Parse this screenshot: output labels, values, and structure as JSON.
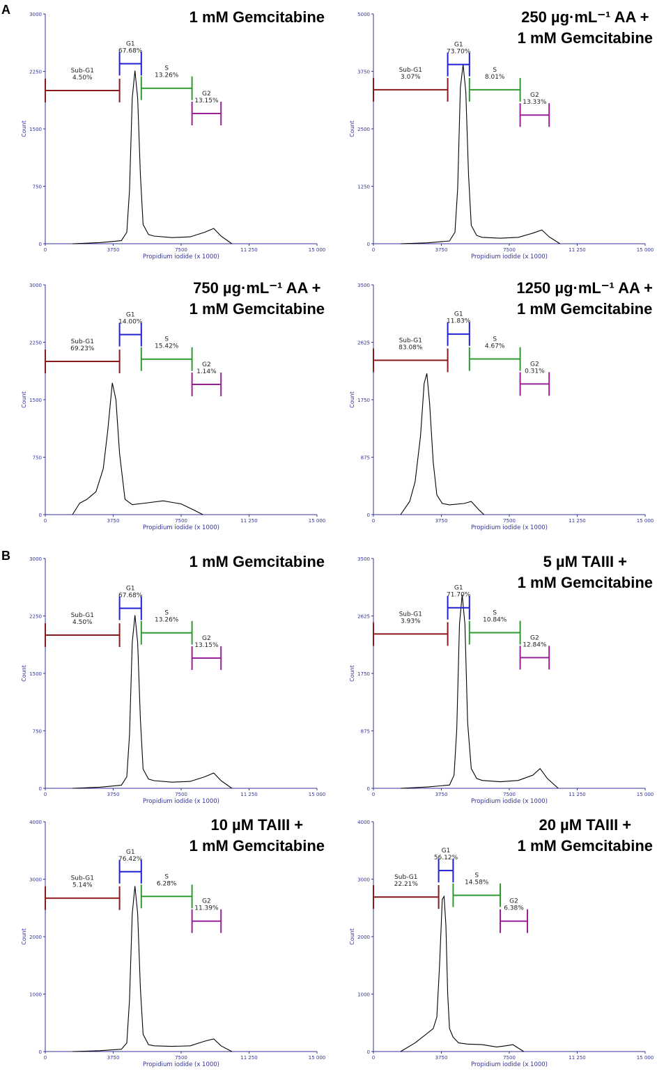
{
  "section_labels": {
    "a": "A",
    "b": "B"
  },
  "colors": {
    "axis": "#33339a",
    "curve": "#000000",
    "subg1": "#8b1a1a",
    "g1": "#1f1fd6",
    "s": "#2f9a2f",
    "g2": "#9a209a"
  },
  "chart_data": [
    {
      "type": "line",
      "section": "A",
      "title": [
        "1 mM Gemcitabine"
      ],
      "xlabel": "Propidium iodide (x 1000)",
      "ylabel": "Count",
      "xlim": [
        0,
        15000
      ],
      "x_ticks": [
        "0",
        "3750",
        "7500",
        "11 250",
        "15 000"
      ],
      "ylim": [
        0,
        3000
      ],
      "y_ticks": [
        "0",
        "750",
        "1500",
        "2250",
        "3000"
      ],
      "series": [
        {
          "x": [
            1500,
            3000,
            4200,
            4500,
            4650,
            4800,
            4950,
            5100,
            5250,
            5400,
            5700,
            6000,
            7000,
            8000,
            8800,
            9300,
            9700,
            10300
          ],
          "y": [
            0,
            15,
            40,
            150,
            700,
            1900,
            2260,
            1900,
            900,
            250,
            120,
            100,
            80,
            90,
            150,
            200,
            100,
            0
          ]
        }
      ],
      "gates": [
        {
          "name": "Sub-G1",
          "percent": "4.50%",
          "x1": 0,
          "x2": 4100,
          "y": 2000
        },
        {
          "name": "G1",
          "percent": "67.68%",
          "x1": 4100,
          "x2": 5300,
          "y": 2350
        },
        {
          "name": "S",
          "percent": "13.26%",
          "x1": 5300,
          "x2": 8100,
          "y": 2030
        },
        {
          "name": "G2",
          "percent": "13.15%",
          "x1": 8100,
          "x2": 9700,
          "y": 1700
        }
      ]
    },
    {
      "type": "line",
      "section": "A",
      "title": [
        "250 µg·mL⁻¹ AA +",
        "1 mM Gemcitabine"
      ],
      "xlabel": "Propidium iodide (x 1000)",
      "ylabel": "Count",
      "xlim": [
        0,
        15000
      ],
      "x_ticks": [
        "0",
        "3750",
        "7500",
        "11 250",
        "15 000"
      ],
      "ylim": [
        0,
        5000
      ],
      "y_ticks": [
        "0",
        "1250",
        "2500",
        "3750",
        "5000"
      ],
      "series": [
        {
          "x": [
            1500,
            3000,
            4200,
            4500,
            4650,
            4800,
            4950,
            5100,
            5250,
            5400,
            5700,
            6000,
            7000,
            8000,
            8800,
            9300,
            9700,
            10300
          ],
          "y": [
            0,
            20,
            60,
            250,
            1200,
            3400,
            3900,
            3300,
            1500,
            400,
            180,
            140,
            120,
            140,
            230,
            300,
            150,
            0
          ]
        }
      ],
      "gates": [
        {
          "name": "Sub-G1",
          "percent": "3.07%",
          "x1": 0,
          "x2": 4100,
          "y": 3350
        },
        {
          "name": "G1",
          "percent": "73.70%",
          "x1": 4100,
          "x2": 5300,
          "y": 3900
        },
        {
          "name": "S",
          "percent": "8.01%",
          "x1": 5300,
          "x2": 8100,
          "y": 3350
        },
        {
          "name": "G2",
          "percent": "13.33%",
          "x1": 8100,
          "x2": 9700,
          "y": 2800
        }
      ]
    },
    {
      "type": "line",
      "section": "A",
      "title": [
        "750 µg·mL⁻¹ AA +",
        "1 mM Gemcitabine"
      ],
      "xlabel": "Propidium iodide (x 1000)",
      "ylabel": "Count",
      "xlim": [
        0,
        15000
      ],
      "x_ticks": [
        "0",
        "3750",
        "7500",
        "11 250",
        "15 000"
      ],
      "ylim": [
        0,
        3000
      ],
      "y_ticks": [
        "0",
        "750",
        "1500",
        "2250",
        "3000"
      ],
      "series": [
        {
          "x": [
            1500,
            1900,
            2300,
            2800,
            3200,
            3450,
            3700,
            3900,
            4100,
            4400,
            4800,
            5500,
            6500,
            7500,
            8200,
            8700
          ],
          "y": [
            0,
            150,
            200,
            300,
            600,
            1100,
            1720,
            1500,
            800,
            200,
            130,
            150,
            180,
            140,
            60,
            0
          ]
        }
      ],
      "gates": [
        {
          "name": "Sub-G1",
          "percent": "69.23%",
          "x1": 0,
          "x2": 4100,
          "y": 2000
        },
        {
          "name": "G1",
          "percent": "14.00%",
          "x1": 4100,
          "x2": 5300,
          "y": 2350
        },
        {
          "name": "S",
          "percent": "15.42%",
          "x1": 5300,
          "x2": 8100,
          "y": 2030
        },
        {
          "name": "G2",
          "percent": "1.14%",
          "x1": 8100,
          "x2": 9700,
          "y": 1700
        }
      ]
    },
    {
      "type": "line",
      "section": "A",
      "title": [
        "1250 µg·mL⁻¹ AA +",
        "1 mM Gemcitabine"
      ],
      "xlabel": "Propidium iodide (x 1000)",
      "ylabel": "Count",
      "xlim": [
        0,
        15000
      ],
      "x_ticks": [
        "0",
        "3750",
        "7500",
        "11 250",
        "15 000"
      ],
      "ylim": [
        0,
        3500
      ],
      "y_ticks": [
        "0",
        "875",
        "1750",
        "2625",
        "3500"
      ],
      "series": [
        {
          "x": [
            1500,
            2000,
            2300,
            2600,
            2800,
            2950,
            3100,
            3300,
            3500,
            3800,
            4200,
            5000,
            5400,
            5800,
            6100
          ],
          "y": [
            0,
            200,
            500,
            1200,
            2000,
            2150,
            1700,
            800,
            300,
            170,
            150,
            170,
            200,
            80,
            0
          ]
        }
      ],
      "gates": [
        {
          "name": "Sub-G1",
          "percent": "83.08%",
          "x1": 0,
          "x2": 4100,
          "y": 2350
        },
        {
          "name": "G1",
          "percent": "11.83%",
          "x1": 4100,
          "x2": 5300,
          "y": 2750
        },
        {
          "name": "S",
          "percent": "4.67%",
          "x1": 5300,
          "x2": 8100,
          "y": 2370
        },
        {
          "name": "G2",
          "percent": "0.31%",
          "x1": 8100,
          "x2": 9700,
          "y": 1990
        }
      ]
    },
    {
      "type": "line",
      "section": "B",
      "title": [
        "1 mM Gemcitabine"
      ],
      "xlabel": "Propidium iodide (x 1000)",
      "ylabel": "Count",
      "xlim": [
        0,
        15000
      ],
      "x_ticks": [
        "0",
        "3750",
        "7500",
        "11 250",
        "15 000"
      ],
      "ylim": [
        0,
        3000
      ],
      "y_ticks": [
        "0",
        "750",
        "1500",
        "2250",
        "3000"
      ],
      "series": [
        {
          "x": [
            1500,
            3000,
            4200,
            4500,
            4650,
            4800,
            4950,
            5100,
            5250,
            5400,
            5700,
            6000,
            7000,
            8000,
            8800,
            9300,
            9700,
            10300
          ],
          "y": [
            0,
            15,
            40,
            150,
            700,
            1900,
            2260,
            1900,
            900,
            250,
            120,
            100,
            80,
            90,
            150,
            200,
            100,
            0
          ]
        }
      ],
      "gates": [
        {
          "name": "Sub-G1",
          "percent": "4.50%",
          "x1": 0,
          "x2": 4100,
          "y": 2000
        },
        {
          "name": "G1",
          "percent": "67.68%",
          "x1": 4100,
          "x2": 5300,
          "y": 2350
        },
        {
          "name": "S",
          "percent": "13.26%",
          "x1": 5300,
          "x2": 8100,
          "y": 2030
        },
        {
          "name": "G2",
          "percent": "13.15%",
          "x1": 8100,
          "x2": 9700,
          "y": 1700
        }
      ]
    },
    {
      "type": "line",
      "section": "B",
      "title": [
        "5 µM TAIII +",
        "1 mM Gemcitabine"
      ],
      "xlabel": "Propidium iodide (x 1000)",
      "ylabel": "Count",
      "xlim": [
        0,
        15000
      ],
      "x_ticks": [
        "0",
        "3750",
        "7500",
        "11 250",
        "15 000"
      ],
      "ylim": [
        0,
        3500
      ],
      "y_ticks": [
        "0",
        "875",
        "1750",
        "2625",
        "3500"
      ],
      "series": [
        {
          "x": [
            1500,
            3000,
            4200,
            4450,
            4600,
            4750,
            4900,
            5050,
            5200,
            5400,
            5700,
            6000,
            7000,
            8000,
            8800,
            9200,
            9600,
            10200
          ],
          "y": [
            0,
            20,
            50,
            200,
            900,
            2500,
            2950,
            2500,
            1000,
            300,
            150,
            120,
            100,
            120,
            200,
            300,
            150,
            0
          ]
        }
      ],
      "gates": [
        {
          "name": "Sub-G1",
          "percent": "3.93%",
          "x1": 0,
          "x2": 4100,
          "y": 2350
        },
        {
          "name": "G1",
          "percent": "71.70%",
          "x1": 4100,
          "x2": 5300,
          "y": 2750
        },
        {
          "name": "S",
          "percent": "10.84%",
          "x1": 5300,
          "x2": 8100,
          "y": 2370
        },
        {
          "name": "G2",
          "percent": "12.84%",
          "x1": 8100,
          "x2": 9700,
          "y": 1990
        }
      ]
    },
    {
      "type": "line",
      "section": "B",
      "title": [
        "10 µM TAIII +",
        "1 mM Gemcitabine"
      ],
      "xlabel": "Propidium iodide (x 1000)",
      "ylabel": "Count",
      "xlim": [
        0,
        15000
      ],
      "x_ticks": [
        "0",
        "3750",
        "7500",
        "11 250",
        "15 000"
      ],
      "ylim": [
        0,
        4000
      ],
      "y_ticks": [
        "0",
        "1000",
        "2000",
        "3000",
        "4000"
      ],
      "series": [
        {
          "x": [
            1500,
            3000,
            4200,
            4500,
            4650,
            4800,
            4950,
            5100,
            5250,
            5400,
            5700,
            6000,
            7000,
            8000,
            8800,
            9300,
            9700,
            10300
          ],
          "y": [
            0,
            15,
            40,
            150,
            900,
            2400,
            2880,
            2400,
            1100,
            300,
            120,
            100,
            90,
            100,
            180,
            220,
            100,
            0
          ]
        }
      ],
      "gates": [
        {
          "name": "Sub-G1",
          "percent": "5.14%",
          "x1": 0,
          "x2": 4100,
          "y": 2670
        },
        {
          "name": "G1",
          "percent": "76.42%",
          "x1": 4100,
          "x2": 5300,
          "y": 3130
        },
        {
          "name": "S",
          "percent": "6.28%",
          "x1": 5300,
          "x2": 8100,
          "y": 2700
        },
        {
          "name": "G2",
          "percent": "11.39%",
          "x1": 8100,
          "x2": 9700,
          "y": 2270
        }
      ]
    },
    {
      "type": "line",
      "section": "B",
      "title": [
        "20 µM TAIII +",
        "1 mM Gemcitabine"
      ],
      "xlabel": "Propidium iodide (x 1000)",
      "ylabel": "Count",
      "xlim": [
        0,
        15000
      ],
      "x_ticks": [
        "0",
        "3750",
        "7500",
        "11 250",
        "15 000"
      ],
      "ylim": [
        0,
        4000
      ],
      "y_ticks": [
        "0",
        "1000",
        "2000",
        "3000",
        "4000"
      ],
      "series": [
        {
          "x": [
            1500,
            2300,
            2900,
            3300,
            3500,
            3650,
            3800,
            3900,
            4000,
            4100,
            4200,
            4400,
            4700,
            5200,
            6000,
            6800,
            7300,
            7700,
            8000,
            8300
          ],
          "y": [
            0,
            150,
            300,
            400,
            600,
            1500,
            2650,
            2700,
            2200,
            1000,
            400,
            250,
            150,
            130,
            120,
            80,
            100,
            120,
            60,
            0
          ]
        }
      ],
      "gates": [
        {
          "name": "Sub-G1",
          "percent": "22.21%",
          "x1": 0,
          "x2": 3600,
          "y": 2690
        },
        {
          "name": "G1",
          "percent": "56.12%",
          "x1": 3600,
          "x2": 4400,
          "y": 3150
        },
        {
          "name": "S",
          "percent": "14.58%",
          "x1": 4400,
          "x2": 7000,
          "y": 2720
        },
        {
          "name": "G2",
          "percent": "6.38%",
          "x1": 7000,
          "x2": 8500,
          "y": 2270
        }
      ]
    }
  ]
}
